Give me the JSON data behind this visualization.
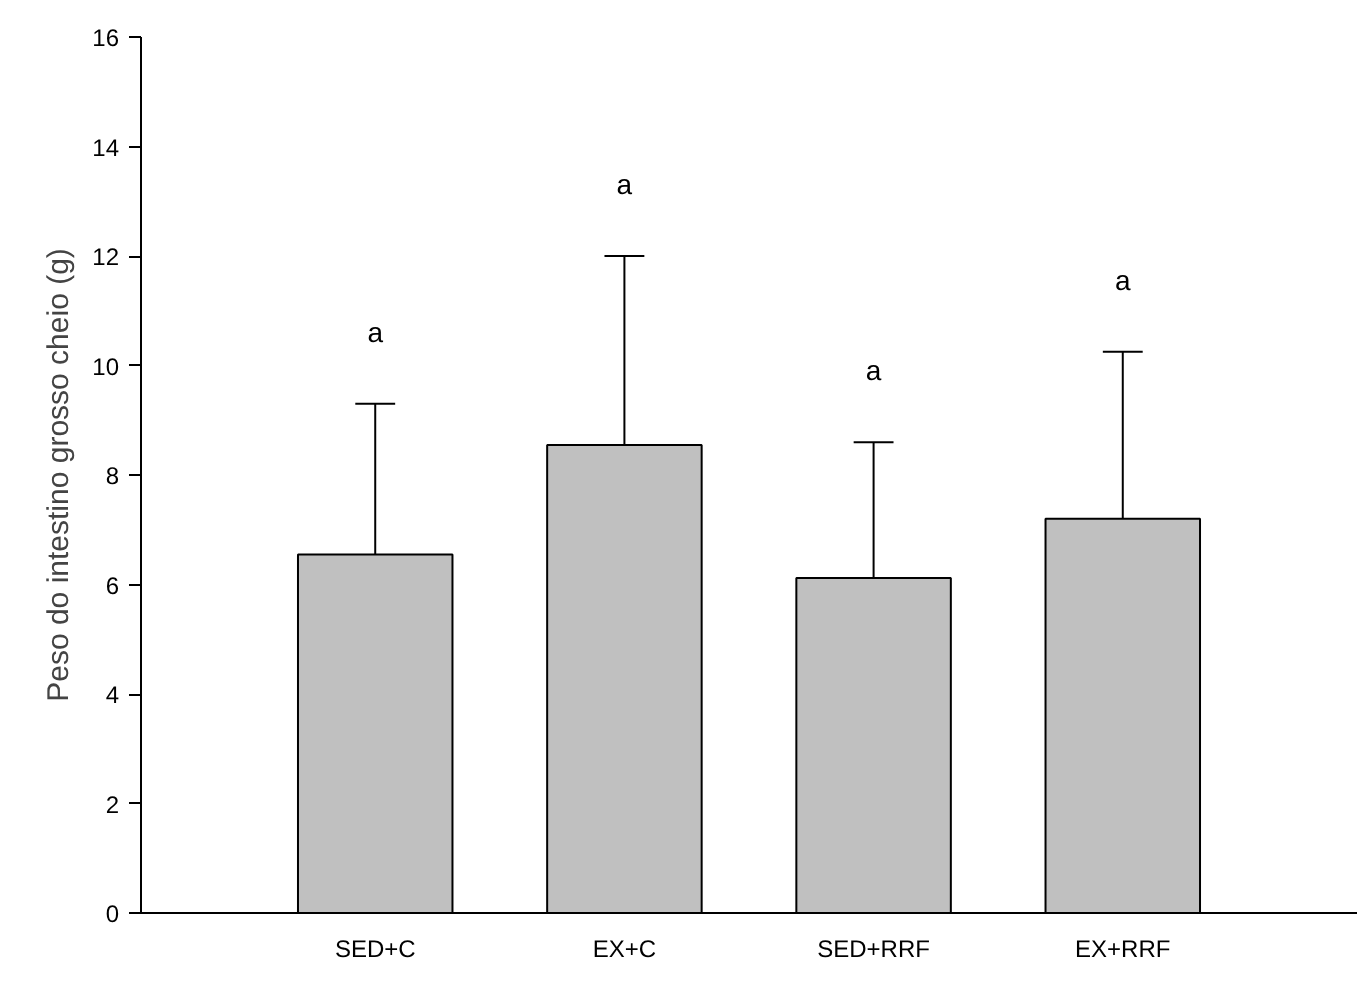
{
  "chart_data": {
    "type": "bar",
    "ylabel": "Peso do intestino grosso cheio (g)",
    "categories": [
      "SED+C",
      "EX+C",
      "SED+RRF",
      "EX+RRF"
    ],
    "values": [
      6.55,
      8.55,
      6.12,
      7.2
    ],
    "errors": [
      [
        6.55,
        9.3
      ],
      [
        8.55,
        12.0
      ],
      [
        6.12,
        8.6
      ],
      [
        7.2,
        10.25
      ]
    ],
    "color": "#c0c0c0",
    "ylim": [
      0,
      16
    ],
    "yticks": [
      0,
      2,
      4,
      6,
      8,
      10,
      12,
      14,
      16
    ],
    "grid": false,
    "annotations": [
      "a",
      "a",
      "a",
      "a"
    ]
  }
}
